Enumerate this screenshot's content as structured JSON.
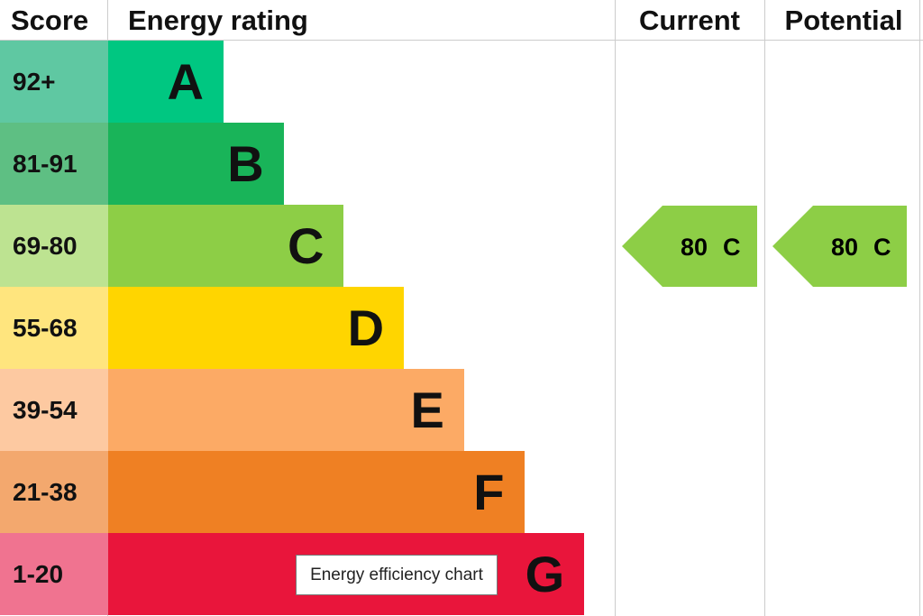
{
  "header": {
    "score": "Score",
    "rating": "Energy rating",
    "current": "Current",
    "potential": "Potential"
  },
  "bands": [
    {
      "score": "92+",
      "letter": "A"
    },
    {
      "score": "81-91",
      "letter": "B"
    },
    {
      "score": "69-80",
      "letter": "C"
    },
    {
      "score": "55-68",
      "letter": "D"
    },
    {
      "score": "39-54",
      "letter": "E"
    },
    {
      "score": "21-38",
      "letter": "F"
    },
    {
      "score": "1-20",
      "letter": "G"
    }
  ],
  "current": {
    "value": 80,
    "rating": "C"
  },
  "potential": {
    "value": 80,
    "rating": "C"
  },
  "tooltip": "Energy efficiency chart"
}
